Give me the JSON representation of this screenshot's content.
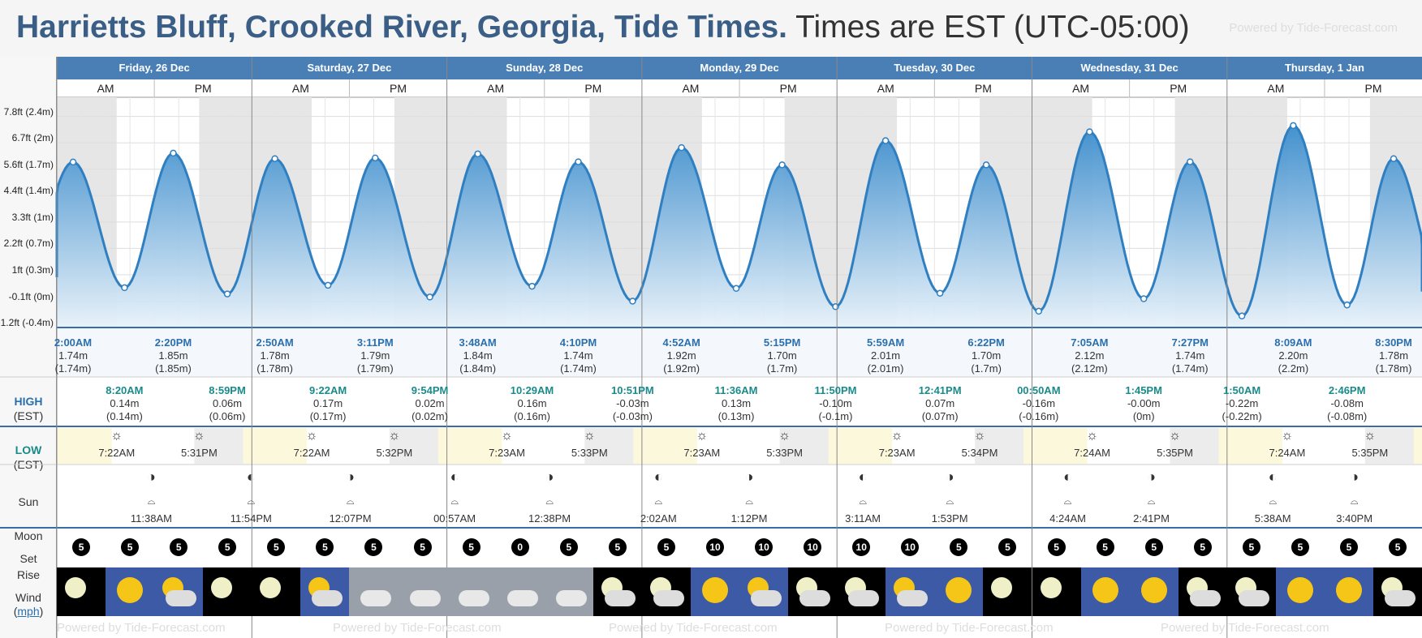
{
  "header": {
    "place": "Harrietts Bluff, Crooked River, Georgia, Tide Times.",
    "timezone": "Times are EST (UTC-05:00)",
    "powered": "Powered by Tide-Forecast.com"
  },
  "side": {
    "high": "HIGH",
    "high_tz": "(EST)",
    "low": "LOW",
    "low_tz": "(EST)",
    "sun": "Sun",
    "moon": "Moon",
    "set": "Set",
    "rise": "Rise",
    "wind": "Wind",
    "wind_unit": "mph"
  },
  "y_ticks": [
    "7.8ft (2.4m)",
    "6.7ft (2m)",
    "5.6ft (1.7m)",
    "4.4ft (1.4m)",
    "3.3ft (1m)",
    "2.2ft (0.7m)",
    "1ft (0.3m)",
    "-0.1ft (0m)",
    "-1.2ft (-0.4m)"
  ],
  "days": [
    {
      "label": "Friday, 26 Dec",
      "am": "AM",
      "pm": "PM",
      "sunrise": "7:22AM",
      "sunset": "5:31PM",
      "moonrise": "11:38AM",
      "moonset": "11:54PM"
    },
    {
      "label": "Saturday, 27 Dec",
      "am": "AM",
      "pm": "PM",
      "sunrise": "7:22AM",
      "sunset": "5:32PM",
      "moonrise": "12:07PM",
      "moonset": ""
    },
    {
      "label": "Sunday, 28 Dec",
      "am": "AM",
      "pm": "PM",
      "sunrise": "7:23AM",
      "sunset": "5:33PM",
      "moonrise": "12:38PM",
      "moonset": "00:57AM"
    },
    {
      "label": "Monday, 29 Dec",
      "am": "AM",
      "pm": "PM",
      "sunrise": "7:23AM",
      "sunset": "5:33PM",
      "moonrise": "1:12PM",
      "moonset": "2:02AM"
    },
    {
      "label": "Tuesday, 30 Dec",
      "am": "AM",
      "pm": "PM",
      "sunrise": "7:23AM",
      "sunset": "5:34PM",
      "moonrise": "1:53PM",
      "moonset": "3:11AM"
    },
    {
      "label": "Wednesday, 31 Dec",
      "am": "AM",
      "pm": "PM",
      "sunrise": "7:24AM",
      "sunset": "5:35PM",
      "moonrise": "2:41PM",
      "moonset": "4:24AM"
    },
    {
      "label": "Thursday, 1 Jan",
      "am": "AM",
      "pm": "PM",
      "sunrise": "7:24AM",
      "sunset": "5:35PM",
      "moonrise": "3:40PM",
      "moonset": "5:38AM"
    }
  ],
  "chart_data": {
    "type": "area",
    "ylim_ft": [
      -1.2,
      8.4
    ],
    "x_unit": "hours from Fri 26 Dec 00:00 EST",
    "highs": [
      {
        "t": 2.0,
        "ft": 5.7,
        "time": "2:00AM",
        "m": "1.74m",
        "mp": "(1.74m)"
      },
      {
        "t": 14.33,
        "ft": 6.07,
        "time": "2:20PM",
        "m": "1.85m",
        "mp": "(1.85m)"
      },
      {
        "t": 26.83,
        "ft": 5.84,
        "time": "2:50AM",
        "m": "1.78m",
        "mp": "(1.78m)"
      },
      {
        "t": 39.18,
        "ft": 5.87,
        "time": "3:11PM",
        "m": "1.79m",
        "mp": "(1.79m)"
      },
      {
        "t": 51.8,
        "ft": 6.04,
        "time": "3:48AM",
        "m": "1.84m",
        "mp": "(1.84m)"
      },
      {
        "t": 64.17,
        "ft": 5.71,
        "time": "4:10PM",
        "m": "1.74m",
        "mp": "(1.74m)"
      },
      {
        "t": 76.87,
        "ft": 6.3,
        "time": "4:52AM",
        "m": "1.92m",
        "mp": "(1.92m)"
      },
      {
        "t": 89.25,
        "ft": 5.58,
        "time": "5:15PM",
        "m": "1.70m",
        "mp": "(1.7m)"
      },
      {
        "t": 101.98,
        "ft": 6.59,
        "time": "5:59AM",
        "m": "2.01m",
        "mp": "(2.01m)"
      },
      {
        "t": 114.37,
        "ft": 5.58,
        "time": "6:22PM",
        "m": "1.70m",
        "mp": "(1.7m)"
      },
      {
        "t": 127.08,
        "ft": 6.96,
        "time": "7:05AM",
        "m": "2.12m",
        "mp": "(2.12m)"
      },
      {
        "t": 139.45,
        "ft": 5.71,
        "time": "7:27PM",
        "m": "1.74m",
        "mp": "(1.74m)"
      },
      {
        "t": 152.15,
        "ft": 7.22,
        "time": "8:09AM",
        "m": "2.20m",
        "mp": "(2.2m)"
      },
      {
        "t": 164.5,
        "ft": 5.84,
        "time": "8:30PM",
        "m": "1.78m",
        "mp": "(1.78m)"
      }
    ],
    "lows": [
      {
        "t": 8.33,
        "ft": 0.46,
        "time": "8:20AM",
        "m": "0.14m",
        "mp": "(0.14m)"
      },
      {
        "t": 20.98,
        "ft": 0.2,
        "time": "8:59PM",
        "m": "0.06m",
        "mp": "(0.06m)"
      },
      {
        "t": 33.37,
        "ft": 0.56,
        "time": "9:22AM",
        "m": "0.17m",
        "mp": "(0.17m)"
      },
      {
        "t": 45.9,
        "ft": 0.07,
        "time": "9:54PM",
        "m": "0.02m",
        "mp": "(0.02m)"
      },
      {
        "t": 58.48,
        "ft": 0.52,
        "time": "10:29AM",
        "m": "0.16m",
        "mp": "(0.16m)"
      },
      {
        "t": 70.85,
        "ft": -0.1,
        "time": "10:51PM",
        "m": "-0.03m",
        "mp": "(-0.03m)"
      },
      {
        "t": 83.6,
        "ft": 0.43,
        "time": "11:36AM",
        "m": "0.13m",
        "mp": "(0.13m)"
      },
      {
        "t": 95.83,
        "ft": -0.33,
        "time": "11:50PM",
        "m": "-0.10m",
        "mp": "(-0.1m)"
      },
      {
        "t": 108.68,
        "ft": 0.23,
        "time": "12:41PM",
        "m": "0.07m",
        "mp": "(0.07m)"
      },
      {
        "t": 120.83,
        "ft": -0.52,
        "time": "00:50AM",
        "m": "-0.16m",
        "mp": "(-0.16m)"
      },
      {
        "t": 133.75,
        "ft": 0.0,
        "time": "1:45PM",
        "m": "-0.00m",
        "mp": "(0m)"
      },
      {
        "t": 145.83,
        "ft": -0.72,
        "time": "1:50AM",
        "m": "-0.22m",
        "mp": "(-0.22m)"
      },
      {
        "t": 158.77,
        "ft": -0.26,
        "time": "2:46PM",
        "m": "-0.08m",
        "mp": "(-0.08m)"
      }
    ]
  },
  "wind": [
    5,
    5,
    5,
    5,
    5,
    5,
    5,
    5,
    5,
    0,
    5,
    5,
    5,
    10,
    10,
    10,
    10,
    10,
    5,
    5,
    5,
    5,
    5,
    5,
    5,
    5,
    5,
    5
  ],
  "weather": [
    "moon",
    "sun",
    "sun-cloud",
    "moon",
    "moon",
    "sun-cloud",
    "cloud",
    "cloud",
    "cloud",
    "cloud",
    "cloud",
    "moon-cloud",
    "moon-cloud",
    "sun",
    "sun-cloud",
    "moon-cloud",
    "moon-cloud",
    "sun-cloud",
    "sun",
    "moon",
    "moon",
    "sun",
    "sun",
    "moon-cloud",
    "moon-cloud",
    "sun",
    "sun",
    "moon-cloud"
  ],
  "colors": {
    "tide_line": "#2f7fc1",
    "tide_fill_top": "#3a8ccc",
    "tide_fill_bottom": "#e8f2fa",
    "night": "#e6e6e6",
    "day_header": "#4a7fb5"
  }
}
